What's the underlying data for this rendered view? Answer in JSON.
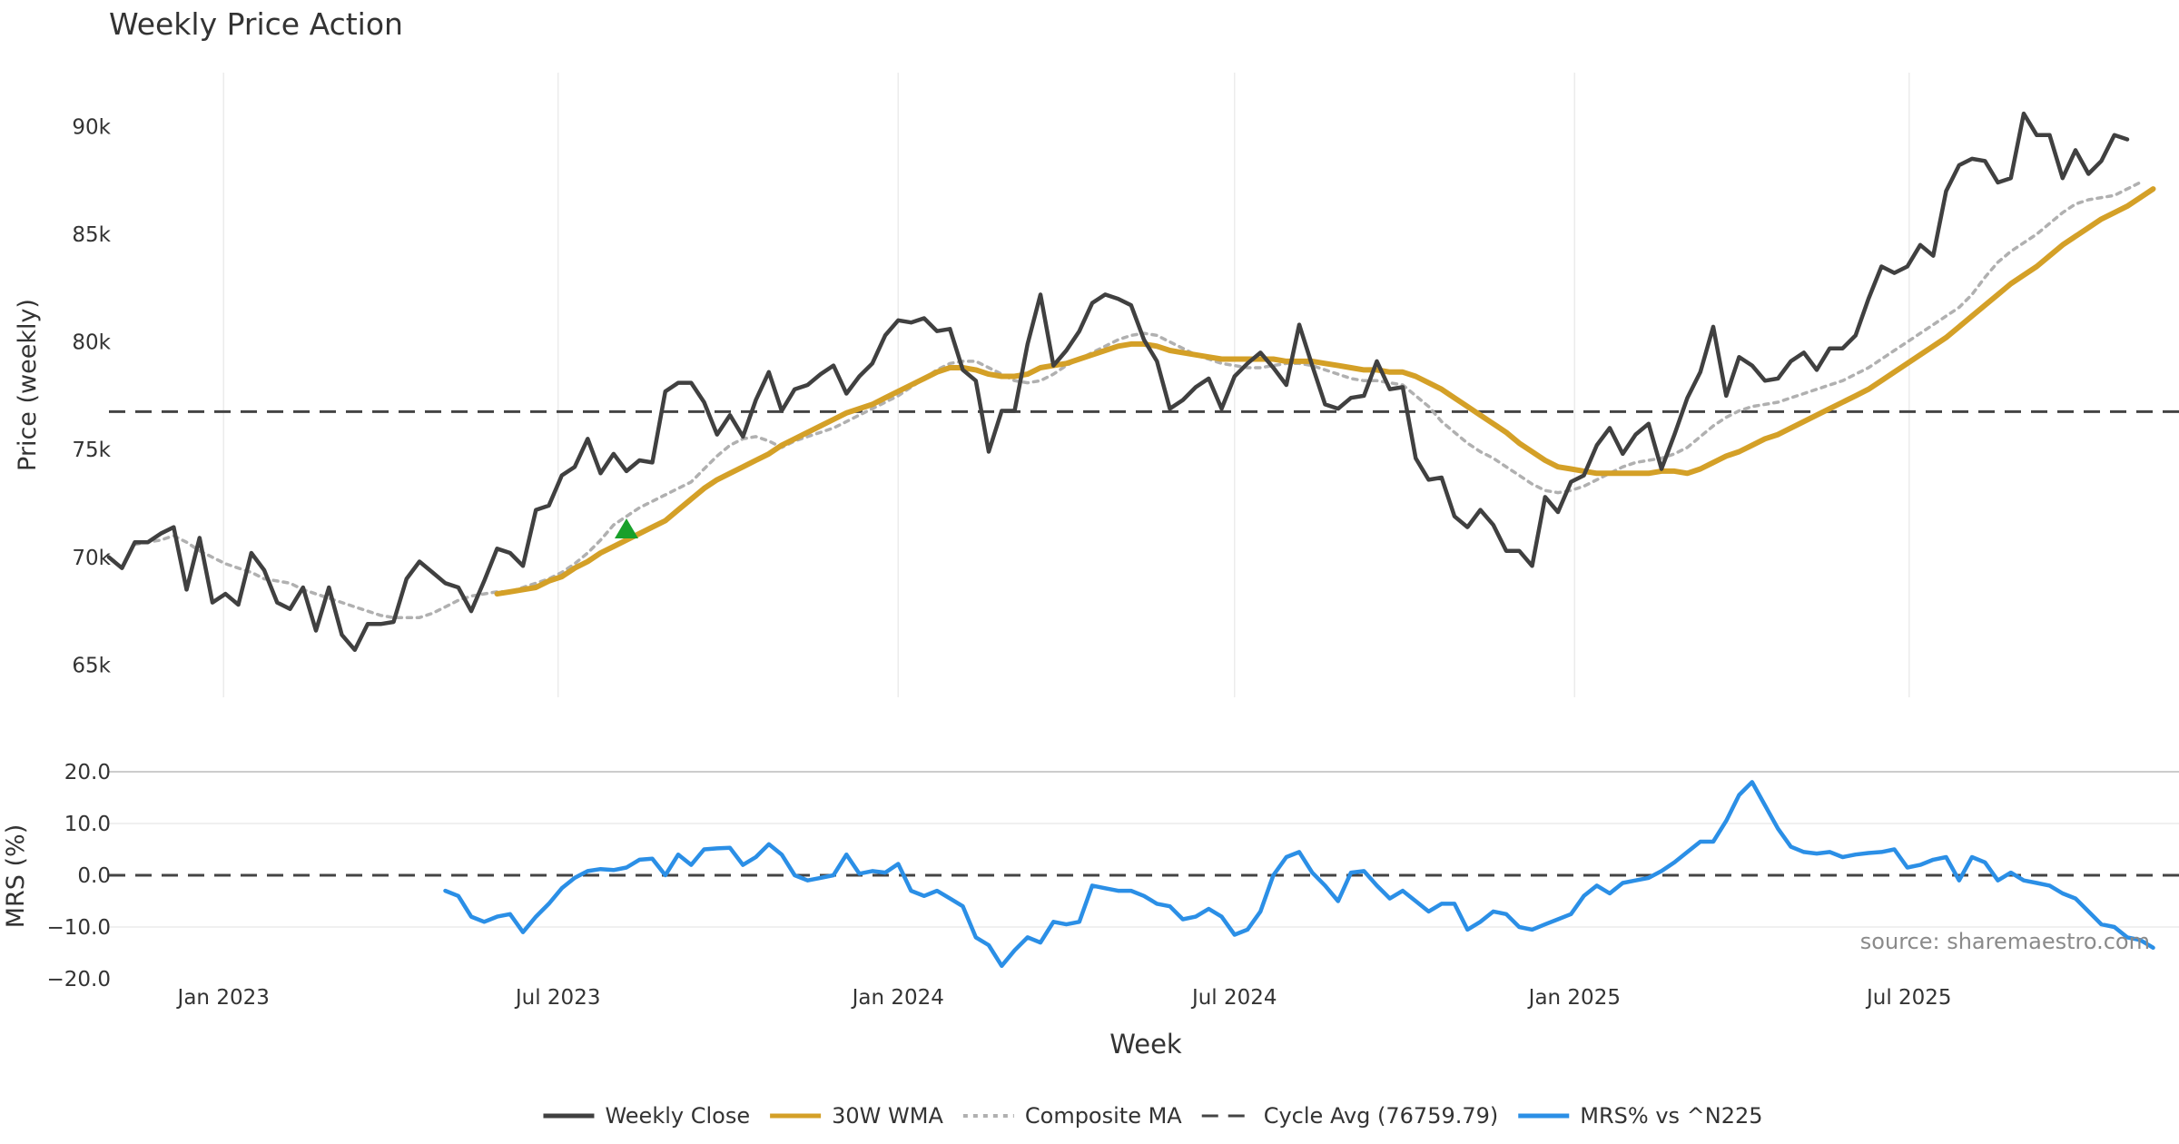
{
  "title": "Weekly Price Action",
  "source": "source: sharemaestro.com",
  "chart_data": [
    {
      "type": "line",
      "panel": "price",
      "ylabel": "Price (weekly)",
      "ylim": [
        63500,
        92500
      ],
      "yticks": [
        65000,
        70000,
        75000,
        80000,
        85000,
        90000
      ],
      "ytick_labels": [
        "65k",
        "70k",
        "75k",
        "80k",
        "85k",
        "90k"
      ],
      "x_start": "2022-10-31",
      "x_end": "2025-11-24",
      "xticks": [
        "2023-01-01",
        "2023-07-01",
        "2024-01-01",
        "2024-07-01",
        "2025-01-01",
        "2025-07-01"
      ],
      "xtick_labels": [
        "Jan 2023",
        "Jul 2023",
        "Jan 2024",
        "Jul 2024",
        "Jan 2025",
        "Jul 2025"
      ],
      "grid": true,
      "series": [
        {
          "name": "Weekly Close",
          "color": "#404040",
          "x_start": "2022-10-31",
          "values": [
            70000,
            69500,
            70700,
            70700,
            71100,
            71400,
            68500,
            70900,
            67900,
            68300,
            67800,
            70200,
            69400,
            67900,
            67600,
            68600,
            66600,
            68600,
            66400,
            65700,
            66900,
            66900,
            67000,
            69000,
            69800,
            69300,
            68800,
            68600,
            67500,
            68900,
            70400,
            70200,
            69600,
            72200,
            72400,
            73800,
            74200,
            75500,
            73900,
            74800,
            74000,
            74500,
            74400,
            77700,
            78100,
            78100,
            77200,
            75700,
            76600,
            75600,
            77300,
            78600,
            76800,
            77800,
            78000,
            78500,
            78900,
            77600,
            78400,
            79000,
            80300,
            81000,
            80900,
            81100,
            80500,
            80600,
            78700,
            78200,
            74900,
            76800,
            76800,
            79900,
            82200,
            78900,
            79600,
            80500,
            81800,
            82200,
            82000,
            81700,
            80100,
            79100,
            76900,
            77300,
            77900,
            78300,
            76900,
            78400,
            79000,
            79500,
            78800,
            78000,
            80800,
            78900,
            77100,
            76900,
            77400,
            77500,
            79100,
            77800,
            77900,
            74600,
            73600,
            73700,
            71900,
            71400,
            72200,
            71500,
            70300,
            70300,
            69600,
            72800,
            72100,
            73500,
            73800,
            75200,
            76000,
            74800,
            75700,
            76200,
            74100,
            75700,
            77400,
            78600,
            80700,
            77500,
            79300,
            78900,
            78200,
            78300,
            79100,
            79500,
            78700,
            79700,
            79700,
            80300,
            82000,
            83500,
            83200,
            83500,
            84500,
            84000,
            87000,
            88200,
            88500,
            88400,
            87400,
            87600,
            90600,
            89600,
            89600,
            87600,
            88900,
            87800,
            88400,
            89600,
            89400
          ]
        },
        {
          "name": "30W WMA",
          "color": "#d4a027",
          "x_start": "2023-05-29",
          "values": [
            68300,
            68400,
            68500,
            68600,
            68900,
            69100,
            69500,
            69800,
            70200,
            70500,
            70800,
            71100,
            71400,
            71700,
            72200,
            72700,
            73200,
            73600,
            73900,
            74200,
            74500,
            74800,
            75200,
            75500,
            75800,
            76100,
            76400,
            76700,
            76900,
            77100,
            77400,
            77700,
            78000,
            78300,
            78600,
            78800,
            78800,
            78700,
            78500,
            78400,
            78400,
            78500,
            78800,
            78900,
            79000,
            79200,
            79400,
            79600,
            79800,
            79900,
            79900,
            79800,
            79600,
            79500,
            79400,
            79300,
            79200,
            79200,
            79200,
            79200,
            79200,
            79100,
            79100,
            79100,
            79000,
            78900,
            78800,
            78700,
            78700,
            78600,
            78600,
            78400,
            78100,
            77800,
            77400,
            77000,
            76600,
            76200,
            75800,
            75300,
            74900,
            74500,
            74200,
            74100,
            74000,
            73900,
            73900,
            73900,
            73900,
            73900,
            74000,
            74000,
            73900,
            74100,
            74400,
            74700,
            74900,
            75200,
            75500,
            75700,
            76000,
            76300,
            76600,
            76900,
            77200,
            77500,
            77800,
            78200,
            78600,
            79000,
            79400,
            79800,
            80200,
            80700,
            81200,
            81700,
            82200,
            82700,
            83100,
            83500,
            84000,
            84500,
            84900,
            85300,
            85700,
            86000,
            86300,
            86700,
            87100
          ]
        },
        {
          "name": "Composite MA",
          "color": "#b0b0b0",
          "x_start": "2022-11-14",
          "values": [
            70600,
            70700,
            70800,
            71000,
            70700,
            70300,
            70000,
            69700,
            69500,
            69300,
            69000,
            68900,
            68800,
            68500,
            68300,
            68100,
            67900,
            67700,
            67500,
            67300,
            67200,
            67200,
            67200,
            67400,
            67700,
            68000,
            68200,
            68300,
            68400,
            68400,
            68600,
            68800,
            69000,
            69300,
            69700,
            70200,
            70800,
            71500,
            71900,
            72300,
            72600,
            72900,
            73200,
            73500,
            74100,
            74700,
            75200,
            75500,
            75600,
            75400,
            75100,
            75400,
            75600,
            75800,
            76000,
            76300,
            76600,
            76900,
            77200,
            77500,
            77900,
            78300,
            78700,
            79000,
            79100,
            79100,
            78800,
            78500,
            78200,
            78100,
            78200,
            78500,
            78900,
            79200,
            79500,
            79800,
            80100,
            80300,
            80400,
            80300,
            80000,
            79700,
            79400,
            79200,
            79000,
            78900,
            78800,
            78800,
            78900,
            79000,
            79000,
            78900,
            78700,
            78500,
            78300,
            78200,
            78200,
            78100,
            78000,
            77500,
            77000,
            76300,
            75800,
            75300,
            74900,
            74600,
            74200,
            73800,
            73400,
            73100,
            73000,
            73100,
            73300,
            73600,
            73900,
            74200,
            74400,
            74500,
            74600,
            74800,
            75100,
            75600,
            76100,
            76500,
            76800,
            77000,
            77100,
            77200,
            77400,
            77600,
            77800,
            78000,
            78200,
            78500,
            78800,
            79200,
            79600,
            80000,
            80400,
            80800,
            81200,
            81600,
            82200,
            83000,
            83700,
            84200,
            84600,
            85000,
            85500,
            86000,
            86400,
            86600,
            86700,
            86800,
            87100,
            87400
          ]
        },
        {
          "name": "Cycle Avg (76759.79)",
          "color": "#444444",
          "constant": 76759.79
        }
      ],
      "markers": [
        {
          "type": "triangle-up",
          "date": "2023-08-07",
          "value": 71300,
          "color": "#18a02a"
        }
      ]
    },
    {
      "type": "line",
      "panel": "mrs",
      "ylabel": "MRS (%)",
      "xlabel": "Week",
      "ylim": [
        -20,
        20
      ],
      "yticks": [
        -20,
        -10,
        0,
        10,
        20
      ],
      "ytick_labels": [
        "−20.0",
        "−10.0",
        "0.0",
        "10.0",
        "20.0"
      ],
      "series": [
        {
          "name": "MRS% vs ^N225",
          "color": "#2b8fe6",
          "x_start": "2023-05-01",
          "values": [
            -3.0,
            -4.0,
            -8.0,
            -9.0,
            -8.0,
            -7.5,
            -11.0,
            -8.0,
            -5.5,
            -2.5,
            -0.5,
            0.8,
            1.2,
            1.0,
            1.5,
            3.0,
            3.2,
            0.0,
            4.0,
            2.0,
            5.0,
            5.2,
            5.3,
            2.0,
            3.5,
            6.0,
            4.0,
            0.0,
            -1.0,
            -0.5,
            0.0,
            4.0,
            0.3,
            0.8,
            0.5,
            2.2,
            -3.0,
            -4.0,
            -3.0,
            -4.5,
            -6.0,
            -12.0,
            -13.5,
            -17.5,
            -14.5,
            -12.0,
            -13.0,
            -9.0,
            -9.5,
            -9.0,
            -2.0,
            -2.5,
            -3.0,
            -3.0,
            -4.0,
            -5.5,
            -6.0,
            -8.5,
            -8.0,
            -6.5,
            -8.0,
            -11.5,
            -10.5,
            -7.0,
            0.0,
            3.5,
            4.5,
            0.5,
            -2.0,
            -5.0,
            0.5,
            0.8,
            -2.0,
            -4.5,
            -3.0,
            -5.0,
            -7.0,
            -5.5,
            -5.5,
            -10.5,
            -9.0,
            -7.0,
            -7.5,
            -10.0,
            -10.5,
            -9.5,
            -8.5,
            -7.5,
            -4.0,
            -2.0,
            -3.5,
            -1.5,
            -1.0,
            -0.5,
            0.8,
            2.5,
            4.5,
            6.5,
            6.5,
            10.5,
            15.5,
            18.0,
            13.5,
            9.0,
            5.5,
            4.5,
            4.2,
            4.5,
            3.5,
            4.0,
            4.3,
            4.5,
            5.0,
            1.5,
            2.0,
            3.0,
            3.5,
            -1.0,
            3.5,
            2.5,
            -1.0,
            0.5,
            -1.0,
            -1.5,
            -2.0,
            -3.5,
            -4.5,
            -7.0,
            -9.5,
            -10.0,
            -12.0,
            -12.5,
            -14.0
          ]
        },
        {
          "name": "zero-line",
          "color": "#444444",
          "constant": 0
        }
      ]
    }
  ],
  "legend": {
    "position": "bottom-center",
    "items": [
      {
        "label": "Weekly Close",
        "color": "#404040",
        "style": "solid"
      },
      {
        "label": "30W WMA",
        "color": "#d4a027",
        "style": "solid"
      },
      {
        "label": "Composite MA",
        "color": "#b0b0b0",
        "style": "dotted"
      },
      {
        "label": "Cycle Avg (76759.79)",
        "color": "#444444",
        "style": "dashed"
      },
      {
        "label": "MRS% vs ^N225",
        "color": "#2b8fe6",
        "style": "solid"
      }
    ]
  }
}
